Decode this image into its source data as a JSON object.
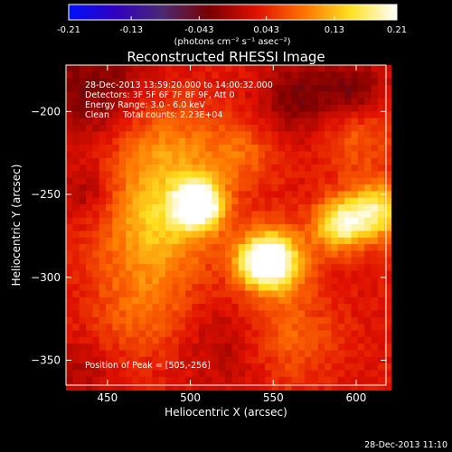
{
  "chart_data": {
    "type": "heatmap",
    "title": "Reconstructed RHESSI Image",
    "xlabel": "Heliocentric X (arcsec)",
    "ylabel": "Heliocentric Y (arcsec)",
    "xlim": [
      425,
      618
    ],
    "ylim": [
      -365,
      -172
    ],
    "x_ticks": [
      450,
      500,
      550,
      600
    ],
    "y_ticks": [
      -200,
      -250,
      -300,
      -350
    ],
    "colorbar": {
      "range": [
        -0.21,
        0.21
      ],
      "tick_values": [
        -0.21,
        -0.13,
        -0.043,
        0.043,
        0.13,
        0.21
      ],
      "tick_labels": [
        "-0.21",
        "-0.13",
        "-0.043",
        "0.043",
        "0.13",
        "0.21"
      ],
      "unit_label": "(photons cm⁻² s⁻¹ asec⁻²)",
      "colors": [
        "#0010ff",
        "#3000c0",
        "#4a2a72",
        "#7a0000",
        "#e01000",
        "#ff7000",
        "#ffe020",
        "#ffffff"
      ]
    },
    "info_lines": [
      "28-Dec-2013 13:59:20.000 to 14:00:32.000",
      "Detectors: 3F 5F 6F 7F 8F 9F, Att 0",
      "Energy Range: 3.0 - 6.0 keV",
      "Clean     Total counts: 2.23E+04"
    ],
    "peak_label": "Position of Peak = [505,-256]",
    "peak": {
      "x": 505,
      "y": -256
    },
    "grid_step_arcsec": 4,
    "sources": [
      {
        "x": 505,
        "y": -256,
        "sigma": 10,
        "amp": 0.21
      },
      {
        "x": 550,
        "y": -290,
        "sigma": 13,
        "amp": 0.19
      },
      {
        "x": 540,
        "y": -291,
        "sigma": 10,
        "amp": 0.08
      },
      {
        "x": 590,
        "y": -268,
        "sigma": 11,
        "amp": 0.15
      },
      {
        "x": 612,
        "y": -260,
        "sigma": 12,
        "amp": 0.14
      },
      {
        "x": 480,
        "y": -270,
        "sigma": 24,
        "amp": 0.1
      },
      {
        "x": 485,
        "y": -225,
        "sigma": 22,
        "amp": 0.07
      },
      {
        "x": 530,
        "y": -225,
        "sigma": 15,
        "amp": 0.05
      },
      {
        "x": 600,
        "y": -215,
        "sigma": 15,
        "amp": 0.05
      },
      {
        "x": 470,
        "y": -320,
        "sigma": 20,
        "amp": 0.05
      },
      {
        "x": 560,
        "y": -335,
        "sigma": 20,
        "amp": 0.05
      },
      {
        "x": 440,
        "y": -185,
        "sigma": 22,
        "amp": -0.06
      },
      {
        "x": 565,
        "y": -192,
        "sigma": 16,
        "amp": -0.06
      },
      {
        "x": 598,
        "y": -188,
        "sigma": 13,
        "amp": -0.06
      },
      {
        "x": 438,
        "y": -250,
        "sigma": 12,
        "amp": -0.04
      },
      {
        "x": 522,
        "y": -342,
        "sigma": 18,
        "amp": -0.03
      },
      {
        "x": 430,
        "y": -360,
        "sigma": 15,
        "amp": -0.03
      }
    ],
    "baseline": 0.03
  },
  "timestamp": "28-Dec-2013 11:10"
}
